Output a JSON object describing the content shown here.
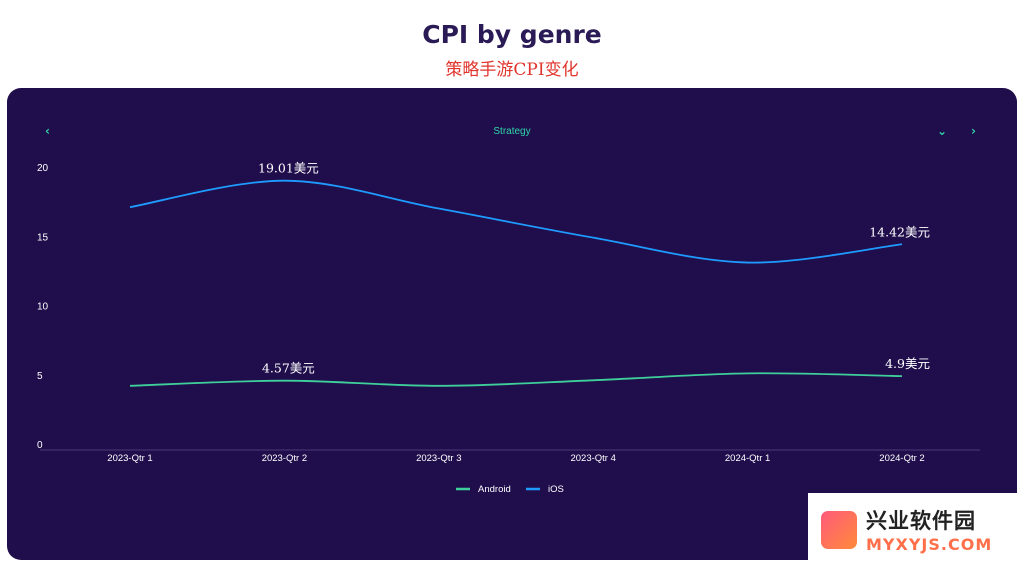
{
  "header": {
    "title": "CPI by genre",
    "subtitle": "策略手游CPI变化"
  },
  "panel": {
    "selected_genre": "Strategy",
    "prev_icon": "chevron-left-icon",
    "dropdown_icon": "chevron-down-icon",
    "next_icon": "chevron-right-icon"
  },
  "watermark": {
    "name": "兴业软件园",
    "url": "MYXYJS.COM"
  },
  "colors": {
    "android": "#3ecf9a",
    "ios": "#1e9bff",
    "panel_bg": "#200e4c",
    "accent": "#2fd5a8"
  },
  "chart_data": {
    "type": "line",
    "title": "",
    "categories": [
      "2023-Qtr 1",
      "2023-Qtr 2",
      "2023-Qtr 3",
      "2023-Qtr 4",
      "2024-Qtr 1",
      "2024-Qtr 2"
    ],
    "y_ticks": [
      "20",
      "15",
      "10",
      "5",
      "0"
    ],
    "ylim": [
      0,
      20
    ],
    "legend_position": "bottom",
    "series": [
      {
        "name": "Android",
        "values": [
          4.2,
          4.57,
          4.2,
          4.6,
          5.1,
          4.9
        ],
        "labels": [
          {
            "index": 1,
            "text": "4.57美元"
          },
          {
            "index": 5,
            "text": "4.9美元"
          }
        ]
      },
      {
        "name": "iOS",
        "values": [
          17.1,
          19.01,
          17.0,
          14.9,
          13.1,
          14.42
        ],
        "labels": [
          {
            "index": 1,
            "text": "19.01美元"
          },
          {
            "index": 5,
            "text": "14.42美元"
          }
        ]
      }
    ]
  }
}
